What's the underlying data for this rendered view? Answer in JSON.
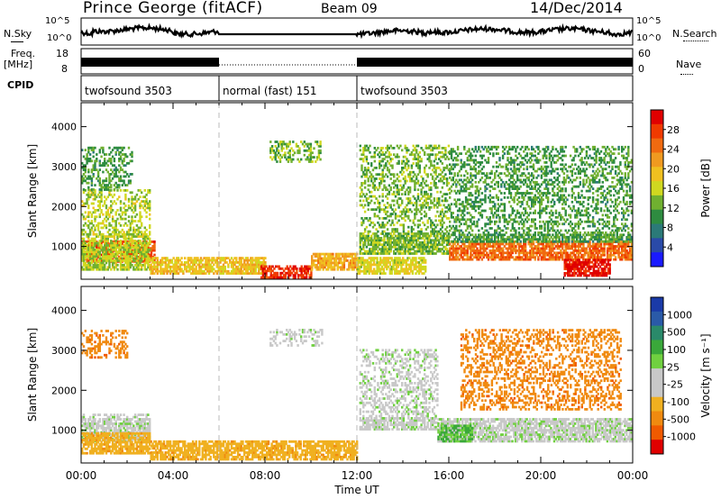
{
  "header": {
    "station": "Prince George (fitACF)",
    "beam": "Beam 09",
    "date": "14/Dec/2014"
  },
  "left_labels": {
    "nsky": "N.Sky",
    "freq_line1": "Freq.",
    "freq_line2": "[MHz]",
    "cpid": "CPID"
  },
  "right_labels": {
    "nsearch": "N.Search",
    "nave": "Nave"
  },
  "strip_ticks": {
    "noise_top": "10^5",
    "noise_bottom": "10^0",
    "freq_top": "18",
    "freq_bottom": "8",
    "nave_top": "60",
    "nave_bottom": "0"
  },
  "cpid_segments": [
    {
      "label": "twofsound 3503",
      "start_hour": 0,
      "end_hour": 6
    },
    {
      "label": "normal (fast) 151",
      "start_hour": 6,
      "end_hour": 12
    },
    {
      "label": "twofsound 3503",
      "start_hour": 12,
      "end_hour": 24
    }
  ],
  "colorbars": {
    "power": {
      "label": "Power [dB]",
      "ticks": [
        "28",
        "24",
        "20",
        "16",
        "12",
        "8",
        "4"
      ],
      "colors": [
        "#e00000",
        "#f03a00",
        "#f06a10",
        "#f09a20",
        "#f0c020",
        "#d0d820",
        "#70b030",
        "#2e8c40",
        "#2b7a78",
        "#2a4aa8",
        "#1a1aff"
      ]
    },
    "velocity": {
      "label": "Velocity [m s⁻¹]",
      "ticks": [
        "1000",
        "500",
        "100",
        "25",
        "-25",
        "-100",
        "-500",
        "-1000"
      ],
      "colors": [
        "#1a3aa8",
        "#2a5aa8",
        "#2a8a6a",
        "#3aa83a",
        "#70d040",
        "#c8c8c8",
        "#c8c8c8",
        "#f0b020",
        "#f08a10",
        "#f05a00",
        "#e00000"
      ]
    }
  },
  "chart_data": [
    {
      "type": "heatmap",
      "quantity": "Power",
      "unit": "dB",
      "ylabel": "Slant Range [km]",
      "xlabel": "Time UT",
      "x_ticks": [
        "00:00",
        "04:00",
        "08:00",
        "12:00",
        "16:00",
        "20:00",
        "00:00"
      ],
      "y_ticks": [
        1000,
        2000,
        3000,
        4000
      ],
      "xlim": [
        0,
        24
      ],
      "ylim": [
        180,
        4600
      ],
      "clim": [
        0,
        30
      ],
      "regions": [
        {
          "t0": 0.0,
          "t1": 3.2,
          "r0": 600,
          "r1": 1150,
          "value": 26
        },
        {
          "t0": 0.0,
          "t1": 3.0,
          "r0": 400,
          "r1": 2400,
          "value": 14
        },
        {
          "t0": 0.0,
          "t1": 2.2,
          "r0": 2400,
          "r1": 3500,
          "value": 10
        },
        {
          "t0": 3.0,
          "t1": 8.0,
          "r0": 300,
          "r1": 700,
          "value": 18
        },
        {
          "t0": 7.8,
          "t1": 10.0,
          "r0": 200,
          "r1": 500,
          "value": 28
        },
        {
          "t0": 8.2,
          "t1": 10.5,
          "r0": 3100,
          "r1": 3600,
          "value": 12
        },
        {
          "t0": 10.0,
          "t1": 12.0,
          "r0": 400,
          "r1": 800,
          "value": 20
        },
        {
          "t0": 12.0,
          "t1": 15.0,
          "r0": 300,
          "r1": 700,
          "value": 16
        },
        {
          "t0": 12.1,
          "t1": 16.0,
          "r0": 800,
          "r1": 3500,
          "value": 12
        },
        {
          "t0": 16.0,
          "t1": 24.0,
          "r0": 650,
          "r1": 1100,
          "value": 24
        },
        {
          "t0": 16.0,
          "t1": 24.0,
          "r0": 1100,
          "r1": 3500,
          "value": 10
        },
        {
          "t0": 21.0,
          "t1": 23.0,
          "r0": 250,
          "r1": 650,
          "value": 30
        }
      ]
    },
    {
      "type": "heatmap",
      "quantity": "Velocity",
      "unit": "m s⁻¹",
      "ylabel": "Slant Range [km]",
      "xlabel": "Time UT",
      "x_ticks": [
        "00:00",
        "04:00",
        "08:00",
        "12:00",
        "16:00",
        "20:00",
        "00:00"
      ],
      "y_ticks": [
        1000,
        2000,
        3000,
        4000
      ],
      "xlim": [
        0,
        24
      ],
      "ylim": [
        180,
        4600
      ],
      "clim": [
        -1000,
        1000
      ],
      "regions": [
        {
          "t0": 0.0,
          "t1": 3.0,
          "r0": 700,
          "r1": 1400,
          "value": 0
        },
        {
          "t0": 0.0,
          "t1": 3.0,
          "r0": 400,
          "r1": 900,
          "value": -150
        },
        {
          "t0": 0.0,
          "t1": 2.0,
          "r0": 2800,
          "r1": 3500,
          "value": -400
        },
        {
          "t0": 3.0,
          "t1": 12.0,
          "r0": 250,
          "r1": 700,
          "value": -150
        },
        {
          "t0": 8.2,
          "t1": 10.5,
          "r0": 3100,
          "r1": 3500,
          "value": 0
        },
        {
          "t0": 12.1,
          "t1": 15.5,
          "r0": 1000,
          "r1": 3000,
          "value": 0
        },
        {
          "t0": 15.5,
          "t1": 24.0,
          "r0": 700,
          "r1": 1300,
          "value": 0
        },
        {
          "t0": 16.5,
          "t1": 23.5,
          "r0": 1500,
          "r1": 3500,
          "value": -400
        },
        {
          "t0": 15.5,
          "t1": 17.0,
          "r0": 700,
          "r1": 1100,
          "value": 80
        }
      ]
    }
  ]
}
